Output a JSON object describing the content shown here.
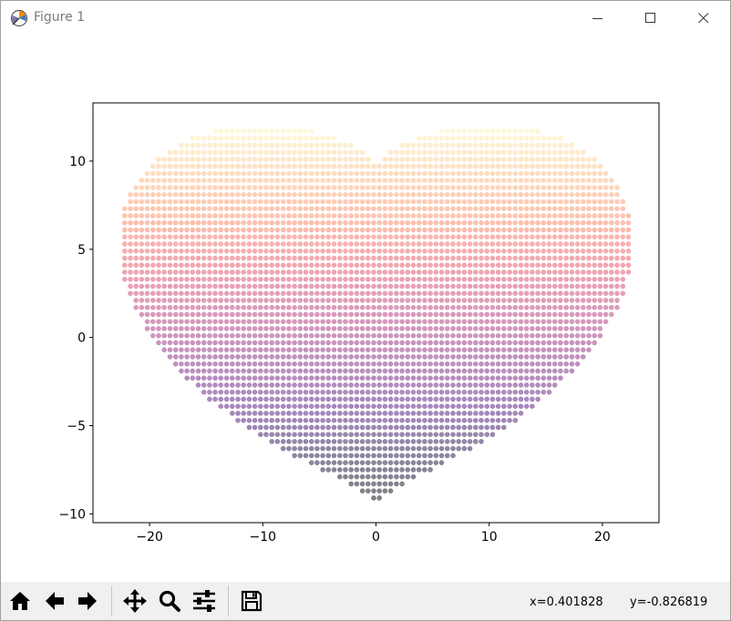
{
  "window": {
    "title": "Figure 1",
    "minimize_icon": "minimize-icon",
    "maximize_icon": "maximize-icon",
    "close_icon": "close-icon"
  },
  "toolbar": {
    "buttons": [
      {
        "name": "home-icon"
      },
      {
        "name": "back-arrow-icon"
      },
      {
        "name": "forward-arrow-icon"
      },
      {
        "name": "pan-icon"
      },
      {
        "name": "zoom-icon"
      },
      {
        "name": "configure-subplots-icon"
      },
      {
        "name": "save-icon"
      }
    ],
    "x_readout": "x=0.401828",
    "y_readout": "y=-0.826819"
  },
  "chart_data": {
    "type": "scatter",
    "title": "",
    "xlabel": "",
    "ylabel": "",
    "xlim": [
      -25,
      25
    ],
    "ylim": [
      -10.5,
      13.3
    ],
    "xticks": [
      -20,
      -10,
      0,
      10,
      20
    ],
    "yticks": [
      -10,
      -5,
      0,
      5,
      10
    ],
    "xtick_labels": [
      "−20",
      "−10",
      "0",
      "10",
      "20"
    ],
    "ytick_labels": [
      "−10",
      "−5",
      "0",
      "5",
      "10"
    ],
    "grid": false,
    "colormap": "magma",
    "color_by": "y",
    "marker_alpha": 0.5,
    "shape": "heart",
    "point_spacing_x": 0.5,
    "point_spacing_y": 0.4,
    "extent": {
      "x_min": -22.7,
      "x_max": 22.7,
      "y_min": -9.5,
      "y_max": 12.2
    }
  }
}
